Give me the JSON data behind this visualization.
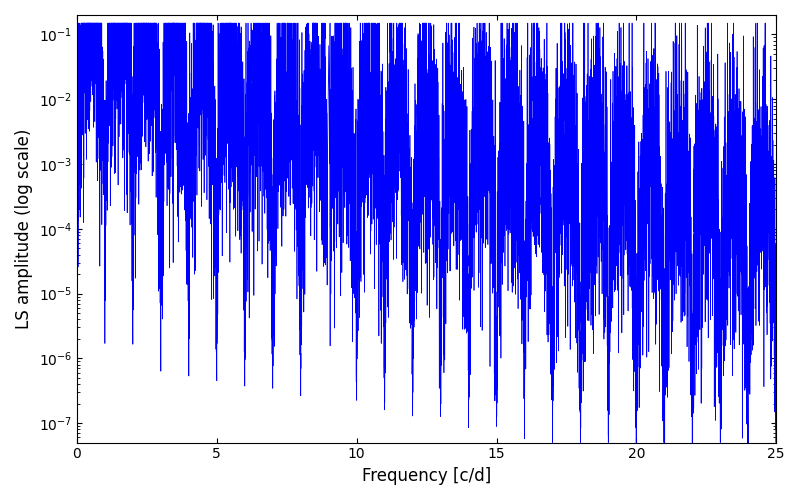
{
  "title": "",
  "xlabel": "Frequency [c/d]",
  "ylabel": "LS amplitude (log scale)",
  "line_color": "#0000FF",
  "xlim": [
    0,
    25
  ],
  "ylim": [
    5e-08,
    0.2
  ],
  "yticks": [
    1e-07,
    1e-06,
    1e-05,
    0.0001,
    0.001,
    0.01,
    0.1
  ],
  "xticks": [
    0,
    5,
    10,
    15,
    20,
    25
  ],
  "seed": 42,
  "n_points": 8000,
  "figsize": [
    8.0,
    5.0
  ],
  "dpi": 100,
  "envelope_amp": 0.08,
  "envelope_decay": 0.22,
  "comb_freq": 1.0,
  "noise_sigma": 2.5,
  "peak9_amp": 6.0,
  "peak9_freq": 9.0
}
